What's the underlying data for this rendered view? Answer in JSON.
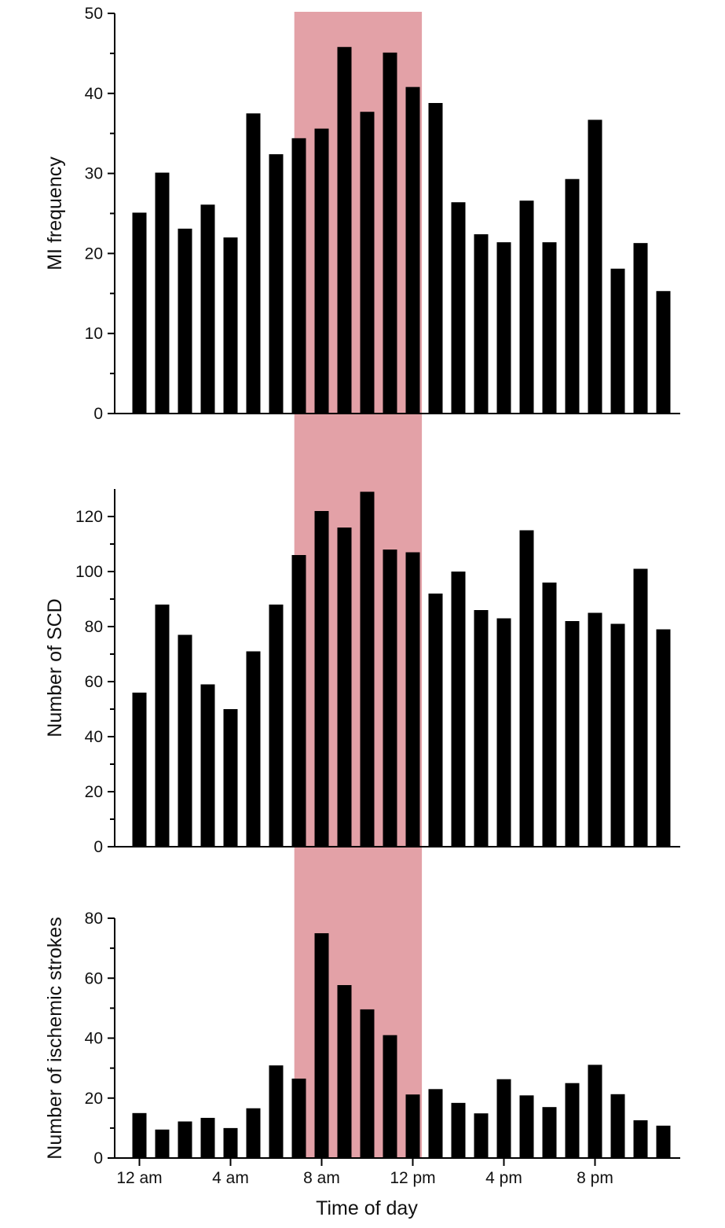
{
  "colors": {
    "bar": "#000000",
    "highlight": "#e3a1a7",
    "axis": "#000000"
  },
  "chart_data": [
    {
      "type": "bar",
      "name": "mi-frequency",
      "ylabel": "MI frequency",
      "ylim": [
        0,
        50
      ],
      "yticks": [
        0,
        10,
        20,
        30,
        40,
        50
      ],
      "xlabel": "",
      "x": [
        0,
        1,
        2,
        3,
        4,
        5,
        6,
        7,
        8,
        9,
        10,
        11,
        12,
        13,
        14,
        15,
        16,
        17,
        18,
        19,
        20,
        21,
        22,
        23
      ],
      "values": [
        25.1,
        30.1,
        23.1,
        26.1,
        22.0,
        37.5,
        32.4,
        34.4,
        35.6,
        45.8,
        37.7,
        45.1,
        40.8,
        38.8,
        26.4,
        22.4,
        21.4,
        26.6,
        21.4,
        29.3,
        36.7,
        18.1,
        21.3,
        15.3
      ]
    },
    {
      "type": "bar",
      "name": "scd",
      "ylabel": "Number of SCD",
      "ylim": [
        0,
        130
      ],
      "yticks": [
        0,
        20,
        40,
        60,
        80,
        100,
        120
      ],
      "xlabel": "",
      "x": [
        0,
        1,
        2,
        3,
        4,
        5,
        6,
        7,
        8,
        9,
        10,
        11,
        12,
        13,
        14,
        15,
        16,
        17,
        18,
        19,
        20,
        21,
        22,
        23
      ],
      "values": [
        56,
        88,
        77,
        59,
        50,
        71,
        88,
        106,
        122,
        116,
        129,
        108,
        107,
        92,
        100,
        86,
        83,
        115,
        96,
        82,
        85,
        81,
        101,
        79
      ]
    },
    {
      "type": "bar",
      "name": "ischemic-strokes",
      "ylabel": "Number of ischemic strokes",
      "ylim": [
        0,
        80
      ],
      "yticks": [
        0,
        20,
        40,
        60,
        80
      ],
      "xlabel": "Time of day",
      "x": [
        0,
        1,
        2,
        3,
        4,
        5,
        6,
        7,
        8,
        9,
        10,
        11,
        12,
        13,
        14,
        15,
        16,
        17,
        18,
        19,
        20,
        21,
        22,
        23
      ],
      "xticks": [
        {
          "value": 0,
          "label": "12 am"
        },
        {
          "value": 4,
          "label": "4 am"
        },
        {
          "value": 8,
          "label": "8 am"
        },
        {
          "value": 12,
          "label": "12 pm"
        },
        {
          "value": 16,
          "label": "4 pm"
        },
        {
          "value": 20,
          "label": "8 pm"
        }
      ],
      "values": [
        15,
        9.5,
        12.2,
        13.4,
        10,
        16.6,
        30.9,
        26.5,
        75,
        57.7,
        49.6,
        41,
        21.2,
        23,
        18.4,
        14.9,
        26.3,
        20.9,
        17,
        25,
        31.1,
        21.3,
        12.6,
        10.8
      ]
    }
  ],
  "highlight": {
    "x_start": 6.8,
    "x_end": 12.4
  }
}
